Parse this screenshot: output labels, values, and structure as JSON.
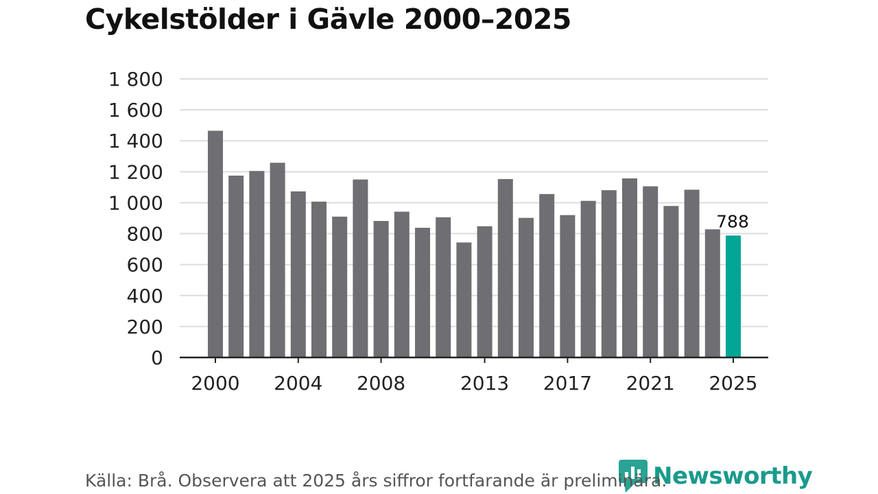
{
  "title": "Cykelstölder i Gävle 2000–2025",
  "footer": "Källa: Brå. Observera att 2025 års siffror fortfarande är preliminära.",
  "brand": {
    "name": "Newsworthy",
    "icon": "newsworthy-logo-icon",
    "color": "#1a9a8c"
  },
  "colors": {
    "bar": "#6e6e73",
    "highlight": "#00a596",
    "grid": "#dddddd",
    "axis": "#222222"
  },
  "chart_data": {
    "type": "bar",
    "title": "Cykelstölder i Gävle 2000–2025",
    "xlabel": "",
    "ylabel": "",
    "ylim": [
      0,
      1800
    ],
    "yticks": [
      0,
      200,
      400,
      600,
      800,
      1000,
      1200,
      1400,
      1600,
      1800
    ],
    "ytick_labels": [
      "0",
      "200",
      "400",
      "600",
      "800",
      "1 000",
      "1 200",
      "1 400",
      "1 600",
      "1 800"
    ],
    "xtick_labels": [
      "2000",
      "2004",
      "2008",
      "2013",
      "2017",
      "2021",
      "2025"
    ],
    "categories": [
      2000,
      2001,
      2002,
      2003,
      2004,
      2005,
      2006,
      2007,
      2008,
      2009,
      2010,
      2011,
      2012,
      2013,
      2014,
      2015,
      2016,
      2017,
      2018,
      2019,
      2020,
      2021,
      2022,
      2023,
      2024,
      2025
    ],
    "values": [
      1465,
      1175,
      1205,
      1258,
      1073,
      1007,
      910,
      1150,
      882,
      942,
      838,
      906,
      743,
      848,
      1153,
      902,
      1056,
      920,
      1012,
      1081,
      1157,
      1106,
      979,
      1084,
      828,
      788
    ],
    "highlight_index": 25,
    "highlight_label": "788",
    "grid": true
  }
}
